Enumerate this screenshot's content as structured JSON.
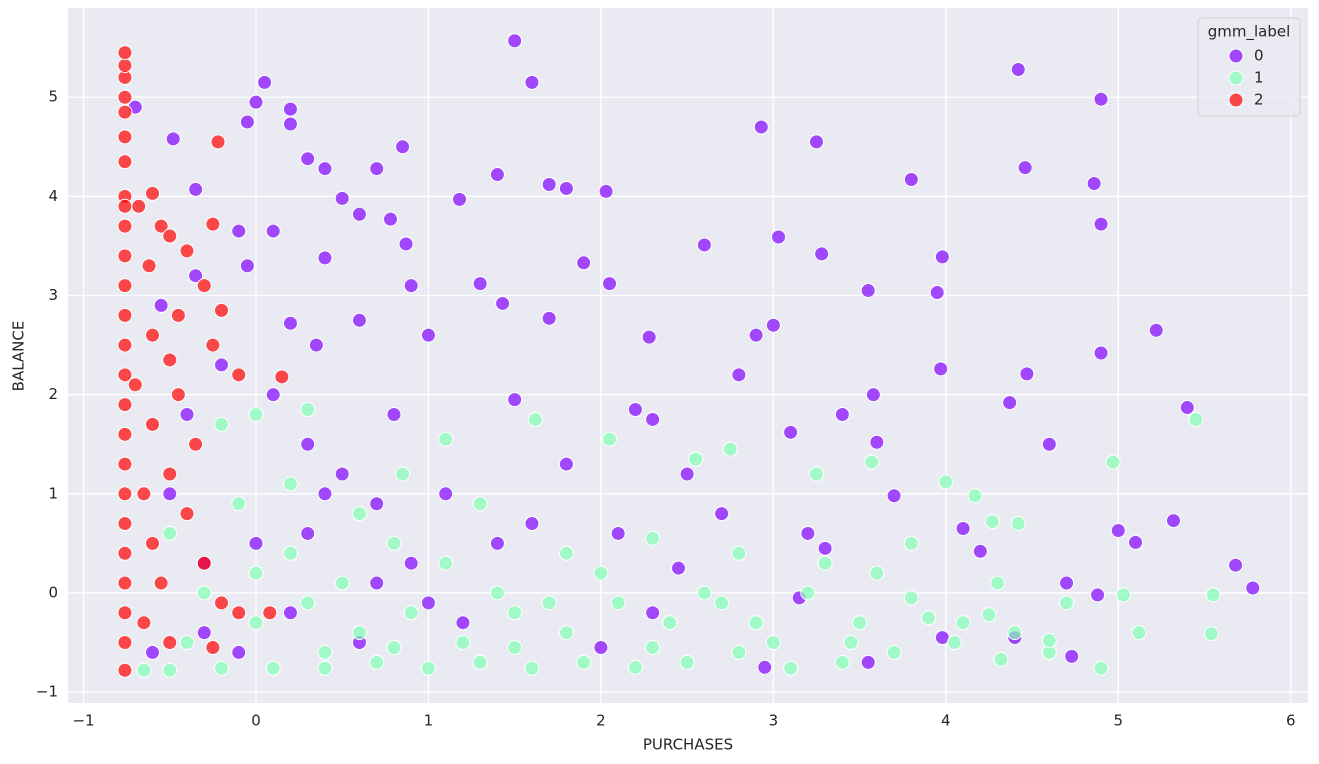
{
  "chart_data": {
    "type": "scatter",
    "x_label": "PURCHASES",
    "y_label": "BALANCE",
    "legend_title": "gmm_label",
    "legend": "upper right",
    "grid": true,
    "xlim": [
      -1.09,
      6.1
    ],
    "ylim": [
      -1.11,
      5.9
    ],
    "xticks": [
      {
        "value": -1,
        "label": "−1"
      },
      0,
      1,
      2,
      3,
      4,
      5,
      6
    ],
    "yticks": [
      {
        "value": -1,
        "label": "−1"
      },
      0,
      1,
      2,
      3,
      4,
      5
    ],
    "series": [
      {
        "name": "0",
        "color": "#8000ff",
        "x": [
          1.5,
          1.6,
          0.05,
          0.0,
          -0.7,
          0.2,
          -0.05,
          0.2,
          4.42,
          4.9,
          2.93,
          3.25,
          0.85,
          -0.48,
          4.46,
          4.86,
          0.4,
          0.7,
          1.4,
          3.8,
          1.7,
          1.8,
          2.03,
          0.3,
          0.5,
          1.18,
          -0.35,
          0.6,
          0.78,
          4.9,
          0.1,
          -0.1,
          3.03,
          2.6,
          0.87,
          3.28,
          3.98,
          0.4,
          1.9,
          -0.05,
          0.9,
          2.05,
          1.3,
          3.55,
          3.95,
          1.43,
          0.6,
          1.7,
          5.22,
          3.0,
          2.28,
          0.2,
          -0.35,
          -0.55,
          0.35,
          1.0,
          2.9,
          3.58,
          3.97,
          4.9,
          4.47,
          4.37,
          5.4,
          4.6,
          3.6,
          3.1,
          2.3,
          2.2,
          1.5,
          0.8,
          0.3,
          0.5,
          0.7,
          1.1,
          1.6,
          2.1,
          2.7,
          3.2,
          3.7,
          4.1,
          4.2,
          5.0,
          5.1,
          5.32,
          5.68,
          5.78,
          4.88,
          4.7,
          4.73,
          4.4,
          3.98,
          3.55,
          2.95,
          2.0,
          1.2,
          0.6,
          0.2,
          -0.3,
          -0.5,
          -0.4,
          -0.2,
          0.1,
          0.4,
          0.9,
          1.4,
          -0.6,
          -0.1,
          0.3,
          1.8,
          2.5,
          2.8,
          3.4,
          3.15,
          3.3,
          2.45,
          1.0,
          -0.3,
          0.0,
          0.7,
          2.3
        ],
        "y": [
          5.57,
          5.15,
          5.15,
          4.95,
          4.9,
          4.88,
          4.75,
          4.73,
          5.28,
          4.98,
          4.7,
          4.55,
          4.5,
          4.58,
          4.29,
          4.13,
          4.28,
          4.28,
          4.22,
          4.17,
          4.12,
          4.08,
          4.05,
          4.38,
          3.98,
          3.97,
          4.07,
          3.82,
          3.77,
          3.72,
          3.65,
          3.65,
          3.59,
          3.51,
          3.52,
          3.42,
          3.39,
          3.38,
          3.33,
          3.3,
          3.1,
          3.12,
          3.12,
          3.05,
          3.03,
          2.92,
          2.75,
          2.77,
          2.65,
          2.7,
          2.58,
          2.72,
          3.2,
          2.9,
          2.5,
          2.6,
          2.6,
          2.0,
          2.26,
          2.42,
          2.21,
          1.92,
          1.87,
          1.5,
          1.52,
          1.62,
          1.75,
          1.85,
          1.95,
          1.8,
          1.5,
          1.2,
          0.9,
          1.0,
          0.7,
          0.6,
          0.8,
          0.6,
          0.98,
          0.65,
          0.42,
          0.63,
          0.51,
          0.73,
          0.28,
          0.05,
          -0.02,
          0.1,
          -0.64,
          -0.45,
          -0.45,
          -0.7,
          -0.75,
          -0.55,
          -0.3,
          -0.5,
          -0.2,
          0.3,
          1.0,
          1.8,
          2.3,
          2.0,
          1.0,
          0.3,
          0.5,
          -0.6,
          -0.6,
          0.6,
          1.3,
          1.2,
          2.2,
          1.8,
          -0.05,
          0.45,
          0.25,
          -0.1,
          -0.4,
          0.5,
          0.1,
          -0.2
        ]
      },
      {
        "name": "1",
        "color": "#80ffb4",
        "x": [
          5.45,
          4.97,
          4.0,
          4.17,
          4.42,
          4.27,
          3.57,
          3.25,
          2.75,
          2.55,
          2.05,
          1.62,
          1.1,
          0.85,
          0.3,
          0.0,
          -0.2,
          0.2,
          0.6,
          1.3,
          1.8,
          2.3,
          2.8,
          3.3,
          3.8,
          4.3,
          4.7,
          5.03,
          5.55,
          5.54,
          5.12,
          4.9,
          4.6,
          4.32,
          4.05,
          3.7,
          3.4,
          3.1,
          2.8,
          2.5,
          2.2,
          1.9,
          1.6,
          1.3,
          1.0,
          0.7,
          0.4,
          0.1,
          -0.2,
          -0.5,
          -0.65,
          -0.4,
          0.0,
          0.3,
          0.6,
          0.9,
          1.2,
          1.5,
          1.8,
          2.1,
          2.4,
          2.7,
          3.0,
          3.2,
          3.5,
          3.8,
          4.1,
          4.4,
          4.6,
          3.6,
          0.0,
          -0.3,
          0.2,
          0.5,
          0.8,
          1.1,
          1.4,
          1.7,
          2.0,
          2.6,
          -0.5,
          -0.1,
          0.4,
          0.8,
          1.5,
          2.3,
          2.9,
          3.45,
          3.9,
          4.25
        ],
        "y": [
          1.75,
          1.32,
          1.12,
          0.98,
          0.7,
          0.72,
          1.32,
          1.2,
          1.45,
          1.35,
          1.55,
          1.75,
          1.55,
          1.2,
          1.85,
          1.8,
          1.7,
          1.1,
          0.8,
          0.9,
          0.4,
          0.55,
          0.4,
          0.3,
          0.5,
          0.1,
          -0.1,
          -0.02,
          -0.02,
          -0.41,
          -0.4,
          -0.76,
          -0.6,
          -0.67,
          -0.5,
          -0.6,
          -0.7,
          -0.76,
          -0.6,
          -0.7,
          -0.75,
          -0.7,
          -0.76,
          -0.7,
          -0.76,
          -0.7,
          -0.76,
          -0.76,
          -0.76,
          -0.78,
          -0.78,
          -0.5,
          -0.3,
          -0.1,
          -0.4,
          -0.2,
          -0.5,
          -0.2,
          -0.4,
          -0.1,
          -0.3,
          -0.1,
          -0.5,
          0.0,
          -0.3,
          -0.05,
          -0.3,
          -0.4,
          -0.48,
          0.2,
          0.2,
          0.0,
          0.4,
          0.1,
          0.5,
          0.3,
          0.0,
          -0.1,
          0.2,
          0.0,
          0.6,
          0.9,
          -0.6,
          -0.55,
          -0.55,
          -0.55,
          -0.3,
          -0.5,
          -0.25,
          -0.22
        ]
      },
      {
        "name": "2",
        "color": "#ff0000",
        "x": [
          -0.76,
          -0.76,
          -0.76,
          -0.76,
          -0.76,
          -0.76,
          -0.76,
          -0.76,
          -0.76,
          -0.76,
          -0.76,
          -0.76,
          -0.76,
          -0.76,
          -0.76,
          -0.76,
          -0.76,
          -0.76,
          -0.76,
          -0.76,
          -0.76,
          -0.76,
          -0.76,
          -0.76,
          -0.76,
          -0.6,
          -0.68,
          -0.55,
          -0.22,
          -0.25,
          -0.5,
          -0.4,
          -0.3,
          -0.2,
          -0.6,
          -0.5,
          -0.25,
          -0.1,
          0.15,
          -0.45,
          -0.6,
          -0.35,
          -0.5,
          -0.65,
          -0.4,
          -0.6,
          -0.3,
          -0.55,
          -0.2,
          -0.65,
          -0.1,
          0.08,
          -0.5,
          -0.25,
          -0.7,
          -0.62,
          -0.45
        ],
        "y": [
          -0.78,
          -0.5,
          -0.2,
          0.1,
          0.4,
          0.7,
          1.0,
          1.3,
          1.6,
          1.9,
          2.2,
          2.5,
          2.8,
          3.1,
          3.4,
          3.7,
          4.0,
          4.35,
          4.6,
          4.85,
          5.0,
          5.2,
          5.32,
          5.45,
          3.9,
          4.03,
          3.9,
          3.7,
          4.55,
          3.72,
          3.6,
          3.45,
          3.1,
          2.85,
          2.6,
          2.35,
          2.5,
          2.2,
          2.18,
          2.0,
          1.7,
          1.5,
          1.2,
          1.0,
          0.8,
          0.5,
          0.3,
          0.1,
          -0.1,
          -0.3,
          -0.2,
          -0.2,
          -0.5,
          -0.55,
          2.1,
          3.3,
          2.8
        ]
      }
    ]
  }
}
